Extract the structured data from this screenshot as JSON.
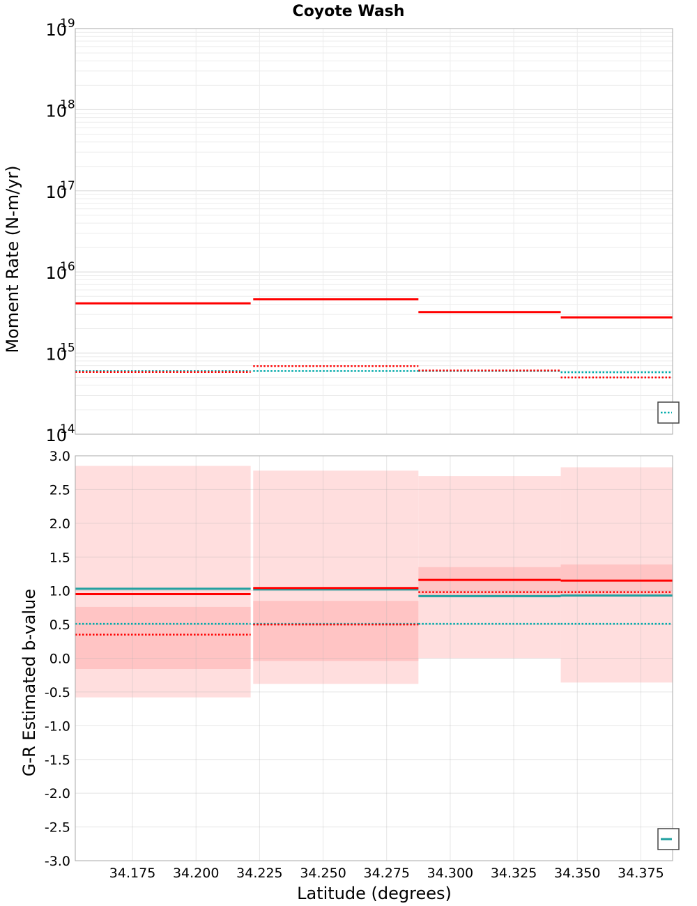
{
  "title": "Coyote Wash",
  "chart_data": [
    {
      "type": "line",
      "title": "Coyote Wash",
      "xlabel": "",
      "ylabel": "Moment Rate (N-m/yr)",
      "yscale": "log",
      "ylim": [
        100000000000000.0,
        1e+19
      ],
      "xlim": [
        34.1525,
        34.3875
      ],
      "grid": true,
      "y_tick_labels": [
        {
          "v": 100000000000000.0,
          "base": "10",
          "exp": "14"
        },
        {
          "v": 1000000000000000.0,
          "base": "10",
          "exp": "15"
        },
        {
          "v": 1e+16,
          "base": "10",
          "exp": "16"
        },
        {
          "v": 1e+17,
          "base": "10",
          "exp": "17"
        },
        {
          "v": 1e+18,
          "base": "10",
          "exp": "18"
        },
        {
          "v": 1e+19,
          "base": "10",
          "exp": "19"
        }
      ],
      "legend_placement": "bottom-right",
      "series": [
        {
          "color": "#ff0000",
          "style": "solid",
          "width": 3,
          "segments": [
            [
              34.1525,
              34.2215,
              4100000000000000.0
            ],
            [
              34.2225,
              34.2875,
              4600000000000000.0
            ],
            [
              34.2875,
              34.3435,
              3200000000000000.0
            ],
            [
              34.3435,
              34.3875,
              2750000000000000.0
            ]
          ]
        },
        {
          "color": "#00aaaa",
          "style": "dotted",
          "width": 2.5,
          "segments": [
            [
              34.1525,
              34.2215,
              600000000000000.0
            ],
            [
              34.2225,
              34.2875,
              600000000000000.0
            ],
            [
              34.2875,
              34.3435,
              600000000000000.0
            ],
            [
              34.3435,
              34.3875,
              580000000000000.0
            ]
          ]
        },
        {
          "color": "#ff0000",
          "style": "dotted",
          "width": 2.5,
          "segments": [
            [
              34.1525,
              34.2215,
              585000000000000.0
            ],
            [
              34.2225,
              34.2875,
              690000000000000.0
            ],
            [
              34.2875,
              34.3435,
              610000000000000.0
            ],
            [
              34.3435,
              34.3875,
              500000000000000.0
            ]
          ]
        }
      ]
    },
    {
      "type": "line",
      "title": "",
      "xlabel": "Latitude (degrees)",
      "ylabel": "G-R Estimated b-value",
      "ylim": [
        -3.0,
        3.0
      ],
      "xlim": [
        34.1525,
        34.3875
      ],
      "grid": true,
      "y_ticks": [
        3.0,
        2.5,
        2.0,
        1.5,
        1.0,
        0.5,
        0.0,
        -0.5,
        -1.0,
        -1.5,
        -2.0,
        -2.5,
        -3.0
      ],
      "y_tick_labels": [
        "3.0",
        "2.5",
        "2.0",
        "1.5",
        "1.0",
        "0.5",
        "0.0",
        "-0.5",
        "-1.0",
        "-1.5",
        "-2.0",
        "-2.5",
        "-3.0"
      ],
      "x_ticks": [
        34.175,
        34.2,
        34.225,
        34.25,
        34.275,
        34.3,
        34.325,
        34.35,
        34.375
      ],
      "x_tick_labels": [
        "34.175",
        "34.200",
        "34.225",
        "34.250",
        "34.275",
        "34.300",
        "34.325",
        "34.350",
        "34.375"
      ],
      "legend_placement": "bottom-right",
      "bands": [
        {
          "color": "#ffdede",
          "segments": [
            [
              34.1525,
              34.2215,
              -0.58,
              2.85
            ],
            [
              34.2225,
              34.2875,
              -0.38,
              2.78
            ],
            [
              34.2875,
              34.3435,
              0.0,
              2.7
            ],
            [
              34.3435,
              34.3875,
              -0.36,
              2.83
            ]
          ]
        },
        {
          "color": "#ffc4c4",
          "segments": [
            [
              34.1525,
              34.2215,
              -0.16,
              0.76
            ],
            [
              34.2225,
              34.2875,
              -0.04,
              0.85
            ],
            [
              34.2875,
              34.3435,
              0.93,
              1.35
            ],
            [
              34.3435,
              34.3875,
              0.93,
              1.39
            ]
          ]
        }
      ],
      "series": [
        {
          "color": "#00aaaa",
          "style": "dotted",
          "width": 2.5,
          "segments": [
            [
              34.1525,
              34.2215,
              0.51
            ],
            [
              34.2225,
              34.2875,
              0.51
            ],
            [
              34.2875,
              34.3435,
              0.51
            ],
            [
              34.3435,
              34.3875,
              0.51
            ]
          ]
        },
        {
          "color": "#ff0000",
          "style": "dotted",
          "width": 2.5,
          "segments": [
            [
              34.1525,
              34.2215,
              0.35
            ],
            [
              34.2225,
              34.2875,
              0.5
            ],
            [
              34.2875,
              34.3435,
              0.98
            ],
            [
              34.3435,
              34.3875,
              0.98
            ]
          ]
        },
        {
          "color": "#20a0a0",
          "style": "solid",
          "width": 3,
          "segments": [
            [
              34.1525,
              34.2215,
              1.03
            ],
            [
              34.2225,
              34.2875,
              1.02
            ],
            [
              34.2875,
              34.3435,
              0.92
            ],
            [
              34.3435,
              34.3875,
              0.93
            ]
          ]
        },
        {
          "color": "#ff0000",
          "style": "solid",
          "width": 3,
          "segments": [
            [
              34.1525,
              34.2215,
              0.95
            ],
            [
              34.2225,
              34.2875,
              1.04
            ],
            [
              34.2875,
              34.3435,
              1.16
            ],
            [
              34.3435,
              34.3875,
              1.15
            ]
          ]
        }
      ]
    }
  ]
}
